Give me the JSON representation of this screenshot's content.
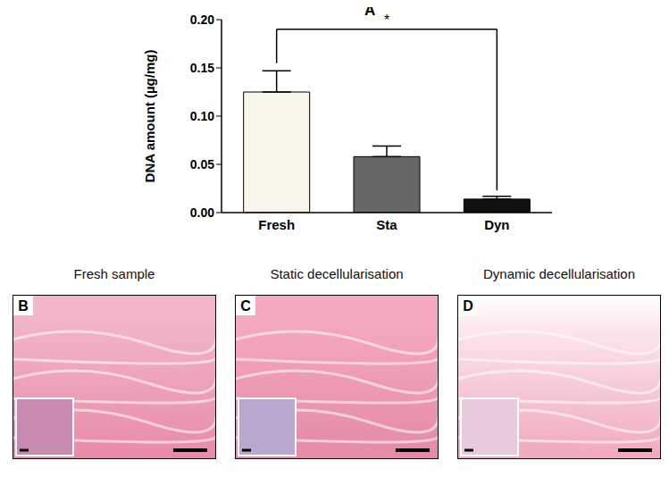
{
  "chart_data": {
    "type": "bar",
    "title": "A",
    "categories": [
      "Fresh",
      "Sta",
      "Dyn"
    ],
    "values": [
      0.125,
      0.058,
      0.014
    ],
    "errors": [
      0.022,
      0.011,
      0.003
    ],
    "colors": [
      "#f8f5ea",
      "#666666",
      "#111111"
    ],
    "y_label": "DNA amount (µg/mg)",
    "ylim": [
      0,
      0.2
    ],
    "yticks": [
      {
        "value": 0,
        "label": "0.00"
      },
      {
        "value": 0.05,
        "label": "0.05"
      },
      {
        "value": 0.1,
        "label": "0.10"
      },
      {
        "value": 0.15,
        "label": "0.15"
      },
      {
        "value": 0.2,
        "label": "0.20"
      }
    ],
    "grid": false,
    "annotations": [
      {
        "text": "*",
        "from": "Fresh",
        "to": "Dyn"
      }
    ]
  },
  "panels": [
    {
      "label": "B",
      "title": "Fresh sample"
    },
    {
      "label": "C",
      "title": "Static decellularisation"
    },
    {
      "label": "D",
      "title": "Dynamic decellularisation"
    }
  ]
}
